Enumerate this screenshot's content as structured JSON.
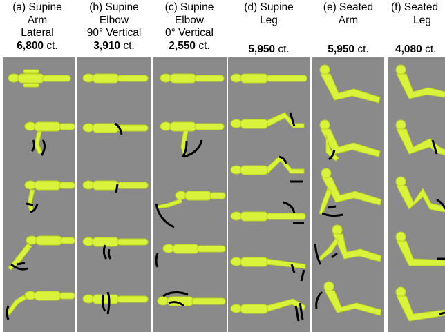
{
  "columns": [
    {
      "id": "a",
      "title_lines": [
        "(a) Supine",
        "Arm",
        "Lateral"
      ],
      "count_value": "6,800",
      "count_suffix": " ct."
    },
    {
      "id": "b",
      "title_lines": [
        "(b) Supine",
        "Elbow",
        "90° Vertical"
      ],
      "count_value": "3,910",
      "count_suffix": " ct."
    },
    {
      "id": "c",
      "title_lines": [
        "(c) Supine",
        "Elbow",
        "0° Vertical"
      ],
      "count_value": "2,550",
      "count_suffix": " ct."
    },
    {
      "id": "d",
      "title_lines": [
        "(d) Supine",
        "Leg"
      ],
      "count_value": "5,950",
      "count_suffix": " ct."
    },
    {
      "id": "e",
      "title_lines": [
        "(e) Seated",
        "Arm"
      ],
      "count_value": "5,950",
      "count_suffix": " ct."
    },
    {
      "id": "f",
      "title_lines": [
        "(f) Seated",
        "Leg"
      ],
      "count_value": "4,080",
      "count_suffix": " ct."
    }
  ],
  "colors": {
    "figure": "#d9f23b",
    "figure_shade": "#b9d420",
    "background": "#8a8a8a",
    "arrow": "#000000",
    "divider": "#ffffff"
  }
}
